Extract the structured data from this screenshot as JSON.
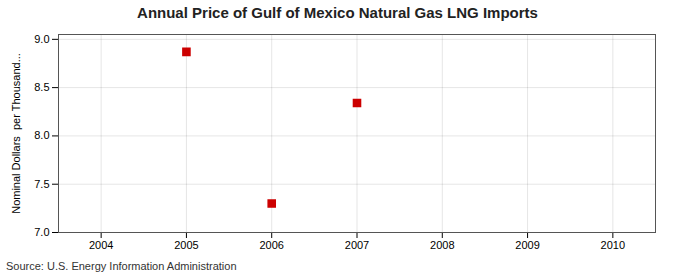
{
  "chart_data": {
    "type": "scatter",
    "title": "Annual Price of Gulf of Mexico Natural Gas LNG Imports",
    "ylabel": "Nominal Dollars  per Thousand...",
    "source": "Source: U.S. Energy Information Administration",
    "x": [
      2005,
      2006,
      2007
    ],
    "values": [
      8.87,
      7.3,
      8.34
    ],
    "color": "#cc0000",
    "marker": "square",
    "xlim": [
      2003.5,
      2010.5
    ],
    "ylim": [
      7.0,
      9.05
    ],
    "xticks": [
      2004,
      2005,
      2006,
      2007,
      2008,
      2009,
      2010
    ],
    "yticks": [
      {
        "value": 7.0,
        "label": "7.0"
      },
      7.5,
      {
        "value": 8.0,
        "label": "8.0"
      },
      8.5,
      {
        "value": 9.0,
        "label": "9.0"
      }
    ],
    "grid": true
  }
}
